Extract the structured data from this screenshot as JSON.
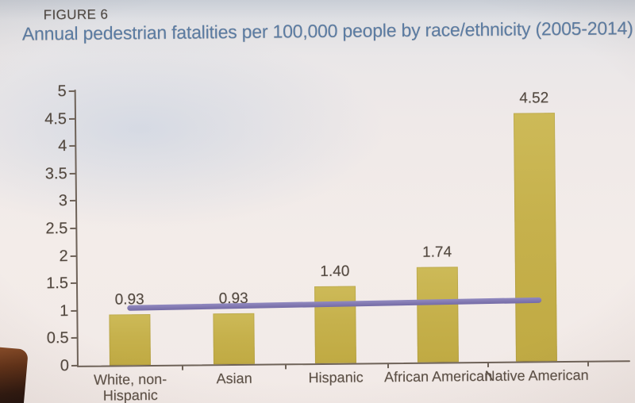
{
  "figure": {
    "label": "FIGURE 6",
    "title": "Annual pedestrian fatalities per 100,000 people by race/ethnicity (2005-2014)"
  },
  "chart_data": {
    "type": "bar",
    "title": "Annual pedestrian fatalities per 100,000 people by race/ethnicity (2005-2014)",
    "categories": [
      "White, non-Hispanic",
      "Asian",
      "Hispanic",
      "African American",
      "Native American"
    ],
    "category_lines": [
      [
        "White, non-",
        "Hispanic"
      ],
      [
        "Asian"
      ],
      [
        "Hispanic"
      ],
      [
        "African American"
      ],
      [
        "Native American"
      ]
    ],
    "values": [
      0.93,
      0.93,
      1.4,
      1.74,
      4.52
    ],
    "data_labels": [
      "0.93",
      "0.93",
      "1.40",
      "1.74",
      "4.52"
    ],
    "xlabel": "",
    "ylabel": "",
    "ylim": [
      0,
      5
    ],
    "yticks": [
      0,
      0.5,
      1,
      1.5,
      2,
      2.5,
      3,
      3.5,
      4,
      4.5,
      5
    ],
    "ytick_labels": [
      "0",
      "0.5",
      "1",
      "1.5",
      "2",
      "2.5",
      "3",
      "3.5",
      "4",
      "4.5",
      "5"
    ],
    "grid": false,
    "legend": null,
    "reference_line": {
      "value": 1.08,
      "description": "flat average line spanning from first to last category center",
      "color": "#837ab2"
    },
    "bar_color": "#c6b14c",
    "axis_color": "#6e6258"
  },
  "colors": {
    "figure_label": "#4d4742",
    "title": "#5b7ca3",
    "value_label": "#52483f",
    "tick_label": "#52483f",
    "category_label": "#5c5046",
    "background_top": "#c9ced6",
    "background_bottom": "#f2eae7"
  }
}
